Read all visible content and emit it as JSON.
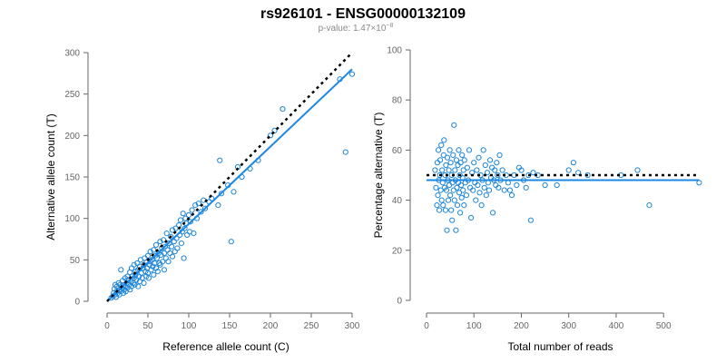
{
  "header": {
    "title": "rs926101 - ENSG00000132109",
    "pvalue_label": "p-value: 1.47×10",
    "pvalue_exp": "−8"
  },
  "colors": {
    "points": "#1f86d9",
    "fit_line": "#1e88e5",
    "reference_line": "#000000",
    "axes": "#666666"
  },
  "chart_data": [
    {
      "type": "scatter",
      "xlabel": "Reference allele count (C)",
      "ylabel": "Alternative allele count (T)",
      "xlim": [
        0,
        300
      ],
      "ylim": [
        0,
        300
      ],
      "xticks": [
        0,
        50,
        100,
        150,
        200,
        250,
        300
      ],
      "yticks": [
        0,
        50,
        100,
        150,
        200,
        250,
        300
      ],
      "reference_line": {
        "style": "dotted",
        "points": [
          [
            0,
            0
          ],
          [
            300,
            300
          ]
        ]
      },
      "fit_line": {
        "style": "solid",
        "points": [
          [
            0,
            0
          ],
          [
            300,
            280
          ]
        ]
      },
      "points": [
        [
          5,
          4
        ],
        [
          7,
          6
        ],
        [
          8,
          10
        ],
        [
          9,
          15
        ],
        [
          10,
          8
        ],
        [
          10,
          20
        ],
        [
          11,
          5
        ],
        [
          12,
          12
        ],
        [
          12,
          18
        ],
        [
          13,
          10
        ],
        [
          14,
          22
        ],
        [
          15,
          14
        ],
        [
          15,
          8
        ],
        [
          16,
          20
        ],
        [
          17,
          12
        ],
        [
          17,
          38
        ],
        [
          18,
          16
        ],
        [
          19,
          25
        ],
        [
          20,
          10
        ],
        [
          20,
          19
        ],
        [
          21,
          14
        ],
        [
          22,
          28
        ],
        [
          22,
          18
        ],
        [
          23,
          12
        ],
        [
          24,
          22
        ],
        [
          25,
          30
        ],
        [
          25,
          16
        ],
        [
          26,
          26
        ],
        [
          27,
          20
        ],
        [
          28,
          35
        ],
        [
          28,
          14
        ],
        [
          29,
          24
        ],
        [
          30,
          18
        ],
        [
          30,
          40
        ],
        [
          31,
          30
        ],
        [
          32,
          22
        ],
        [
          33,
          44
        ],
        [
          33,
          28
        ],
        [
          34,
          20
        ],
        [
          35,
          36
        ],
        [
          35,
          32
        ],
        [
          36,
          26
        ],
        [
          37,
          46
        ],
        [
          38,
          18
        ],
        [
          38,
          38
        ],
        [
          39,
          30
        ],
        [
          40,
          42
        ],
        [
          40,
          24
        ],
        [
          41,
          50
        ],
        [
          42,
          34
        ],
        [
          43,
          28
        ],
        [
          44,
          40
        ],
        [
          45,
          44
        ],
        [
          45,
          22
        ],
        [
          46,
          52
        ],
        [
          47,
          36
        ],
        [
          48,
          30
        ],
        [
          48,
          47
        ],
        [
          49,
          40
        ],
        [
          50,
          55
        ],
        [
          50,
          34
        ],
        [
          51,
          28
        ],
        [
          52,
          44
        ],
        [
          53,
          60
        ],
        [
          53,
          48
        ],
        [
          54,
          38
        ],
        [
          55,
          50
        ],
        [
          56,
          42
        ],
        [
          57,
          62
        ],
        [
          57,
          32
        ],
        [
          58,
          46
        ],
        [
          59,
          55
        ],
        [
          60,
          40
        ],
        [
          60,
          68
        ],
        [
          61,
          52
        ],
        [
          62,
          36
        ],
        [
          63,
          58
        ],
        [
          64,
          46
        ],
        [
          65,
          72
        ],
        [
          65,
          44
        ],
        [
          66,
          56
        ],
        [
          67,
          64
        ],
        [
          68,
          48
        ],
        [
          69,
          74
        ],
        [
          70,
          58
        ],
        [
          70,
          38
        ],
        [
          71,
          66
        ],
        [
          72,
          52
        ],
        [
          73,
          82
        ],
        [
          74,
          62
        ],
        [
          75,
          48
        ],
        [
          76,
          70
        ],
        [
          77,
          58
        ],
        [
          78,
          78
        ],
        [
          79,
          66
        ],
        [
          80,
          54
        ],
        [
          80,
          86
        ],
        [
          82,
          72
        ],
        [
          83,
          60
        ],
        [
          84,
          88
        ],
        [
          85,
          76
        ],
        [
          86,
          64
        ],
        [
          88,
          92
        ],
        [
          89,
          80
        ],
        [
          90,
          98
        ],
        [
          91,
          70
        ],
        [
          92,
          84
        ],
        [
          93,
          106
        ],
        [
          94,
          52
        ],
        [
          95,
          88
        ],
        [
          96,
          100
        ],
        [
          97,
          94
        ],
        [
          98,
          80
        ],
        [
          100,
          104
        ],
        [
          101,
          84
        ],
        [
          102,
          96
        ],
        [
          104,
          110
        ],
        [
          106,
          82
        ],
        [
          108,
          116
        ],
        [
          110,
          100
        ],
        [
          112,
          118
        ],
        [
          115,
          108
        ],
        [
          118,
          122
        ],
        [
          120,
          112
        ],
        [
          125,
          120
        ],
        [
          128,
          124
        ],
        [
          136,
          116
        ],
        [
          138,
          170
        ],
        [
          140,
          130
        ],
        [
          148,
          140
        ],
        [
          152,
          72
        ],
        [
          155,
          132
        ],
        [
          160,
          162
        ],
        [
          165,
          150
        ],
        [
          175,
          160
        ],
        [
          185,
          170
        ],
        [
          200,
          200
        ],
        [
          205,
          206
        ],
        [
          215,
          232
        ],
        [
          285,
          268
        ],
        [
          292,
          180
        ],
        [
          300,
          274
        ]
      ]
    },
    {
      "type": "scatter",
      "xlabel": "Total number of reads",
      "ylabel": "Percentage alternative (T)",
      "xlim": [
        0,
        580
      ],
      "ylim": [
        0,
        100
      ],
      "xticks": [
        0,
        100,
        200,
        300,
        400,
        500
      ],
      "yticks": [
        0,
        20,
        40,
        60,
        80,
        100
      ],
      "reference_line": {
        "style": "dotted",
        "points": [
          [
            0,
            50
          ],
          [
            575,
            50
          ]
        ]
      },
      "fit_line": {
        "style": "solid",
        "points": [
          [
            0,
            48
          ],
          [
            575,
            48
          ]
        ]
      },
      "points": [
        [
          18,
          52
        ],
        [
          20,
          45
        ],
        [
          22,
          38
        ],
        [
          23,
          55
        ],
        [
          24,
          42
        ],
        [
          25,
          60
        ],
        [
          26,
          48
        ],
        [
          27,
          36
        ],
        [
          28,
          50
        ],
        [
          29,
          56
        ],
        [
          30,
          44
        ],
        [
          31,
          62
        ],
        [
          32,
          40
        ],
        [
          33,
          52
        ],
        [
          34,
          47
        ],
        [
          35,
          38
        ],
        [
          36,
          58
        ],
        [
          37,
          64
        ],
        [
          38,
          45
        ],
        [
          39,
          50
        ],
        [
          40,
          36
        ],
        [
          41,
          54
        ],
        [
          42,
          44
        ],
        [
          43,
          28
        ],
        [
          44,
          57
        ],
        [
          45,
          48
        ],
        [
          46,
          40
        ],
        [
          47,
          52
        ],
        [
          48,
          46
        ],
        [
          49,
          60
        ],
        [
          50,
          42
        ],
        [
          51,
          55
        ],
        [
          52,
          36
        ],
        [
          53,
          50
        ],
        [
          54,
          32
        ],
        [
          55,
          47
        ],
        [
          56,
          58
        ],
        [
          57,
          44
        ],
        [
          58,
          70
        ],
        [
          59,
          40
        ],
        [
          60,
          52
        ],
        [
          61,
          48
        ],
        [
          62,
          28
        ],
        [
          63,
          56
        ],
        [
          64,
          45
        ],
        [
          65,
          38
        ],
        [
          66,
          54
        ],
        [
          67,
          47
        ],
        [
          68,
          60
        ],
        [
          69,
          43
        ],
        [
          70,
          50
        ],
        [
          71,
          35
        ],
        [
          72,
          55
        ],
        [
          73,
          46
        ],
        [
          74,
          41
        ],
        [
          75,
          58
        ],
        [
          76,
          49
        ],
        [
          77,
          44
        ],
        [
          78,
          52
        ],
        [
          79,
          38
        ],
        [
          80,
          56
        ],
        [
          82,
          47
        ],
        [
          84,
          42
        ],
        [
          86,
          53
        ],
        [
          88,
          48
        ],
        [
          90,
          60
        ],
        [
          92,
          45
        ],
        [
          94,
          33
        ],
        [
          96,
          51
        ],
        [
          98,
          44
        ],
        [
          100,
          55
        ],
        [
          102,
          47
        ],
        [
          104,
          40
        ],
        [
          106,
          52
        ],
        [
          108,
          46
        ],
        [
          110,
          57
        ],
        [
          112,
          43
        ],
        [
          114,
          50
        ],
        [
          116,
          38
        ],
        [
          118,
          48
        ],
        [
          120,
          60
        ],
        [
          122,
          45
        ],
        [
          124,
          54
        ],
        [
          126,
          42
        ],
        [
          128,
          51
        ],
        [
          130,
          47
        ],
        [
          132,
          44
        ],
        [
          134,
          56
        ],
        [
          136,
          49
        ],
        [
          138,
          53
        ],
        [
          140,
          35
        ],
        [
          142,
          48
        ],
        [
          144,
          52
        ],
        [
          146,
          46
        ],
        [
          148,
          55
        ],
        [
          150,
          50
        ],
        [
          152,
          45
        ],
        [
          154,
          58
        ],
        [
          156,
          48
        ],
        [
          160,
          52
        ],
        [
          164,
          44
        ],
        [
          168,
          50
        ],
        [
          172,
          47
        ],
        [
          176,
          44
        ],
        [
          180,
          42
        ],
        [
          185,
          50
        ],
        [
          190,
          46
        ],
        [
          195,
          53
        ],
        [
          200,
          52
        ],
        [
          205,
          48
        ],
        [
          210,
          45
        ],
        [
          215,
          50
        ],
        [
          220,
          32
        ],
        [
          225,
          51
        ],
        [
          235,
          50
        ],
        [
          250,
          46
        ],
        [
          275,
          46
        ],
        [
          300,
          52
        ],
        [
          310,
          55
        ],
        [
          320,
          51
        ],
        [
          340,
          50
        ],
        [
          410,
          50
        ],
        [
          445,
          52
        ],
        [
          470,
          38
        ],
        [
          575,
          47
        ]
      ]
    }
  ]
}
